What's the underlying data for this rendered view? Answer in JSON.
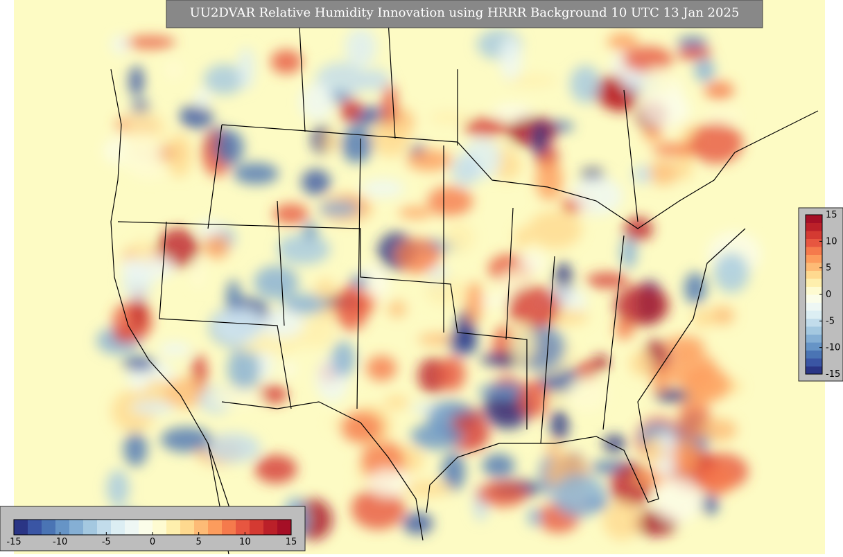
{
  "title": "UU2DVAR Relative Humidity Innovation using HRRR Background 10 UTC 13 Jan 2025",
  "colormap": [
    "#2a3585",
    "#3a55a4",
    "#4a74b4",
    "#6694c6",
    "#85afd4",
    "#a4c8e0",
    "#c2dceb",
    "#dceef3",
    "#eef7f4",
    "#fbfde9",
    "#fefbd1",
    "#feefad",
    "#fed98f",
    "#fdbb76",
    "#fc9c5d",
    "#f57a4c",
    "#e75640",
    "#d43a32",
    "#bb2029",
    "#a50f26"
  ],
  "colorbar_horizontal": {
    "lim": [
      -15,
      15
    ],
    "ticks": [
      -15,
      -10,
      -5,
      0,
      5,
      10,
      15
    ]
  },
  "colorbar_vertical": {
    "lim": [
      -15,
      15
    ],
    "ticks": [
      15,
      10,
      5,
      0,
      -5,
      -10,
      -15
    ]
  }
}
